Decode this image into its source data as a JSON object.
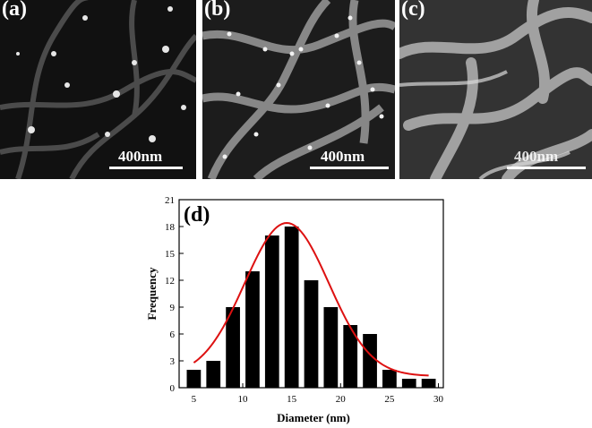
{
  "panels": [
    {
      "label": "(a)",
      "scale": "400nm",
      "tone": "#161616"
    },
    {
      "label": "(b)",
      "scale": "400nm",
      "tone": "#1e1e1e"
    },
    {
      "label": "(c)",
      "scale": "400nm",
      "tone": "#3a3a3a"
    }
  ],
  "chart_data": {
    "type": "bar",
    "panel_label": "(d)",
    "xlabel": "Diameter (nm)",
    "ylabel": "Frequency",
    "x": [
      5,
      7,
      9,
      11,
      13,
      15,
      17,
      19,
      21,
      23,
      25,
      27,
      29
    ],
    "values": [
      2,
      3,
      9,
      13,
      17,
      18,
      12,
      9,
      7,
      6,
      2,
      1,
      1
    ],
    "xlim": [
      3.5,
      30.5
    ],
    "ylim": [
      0,
      21
    ],
    "xticks": [
      5,
      10,
      15,
      20,
      25,
      30
    ],
    "yticks": [
      0,
      3,
      6,
      9,
      12,
      15,
      18,
      21
    ],
    "bar_color": "#000000",
    "fit": {
      "type": "gaussian",
      "amplitude": 17.1,
      "center": 14.5,
      "sigma": 4.3,
      "offset": 1.3,
      "color": "#dd1111"
    }
  }
}
